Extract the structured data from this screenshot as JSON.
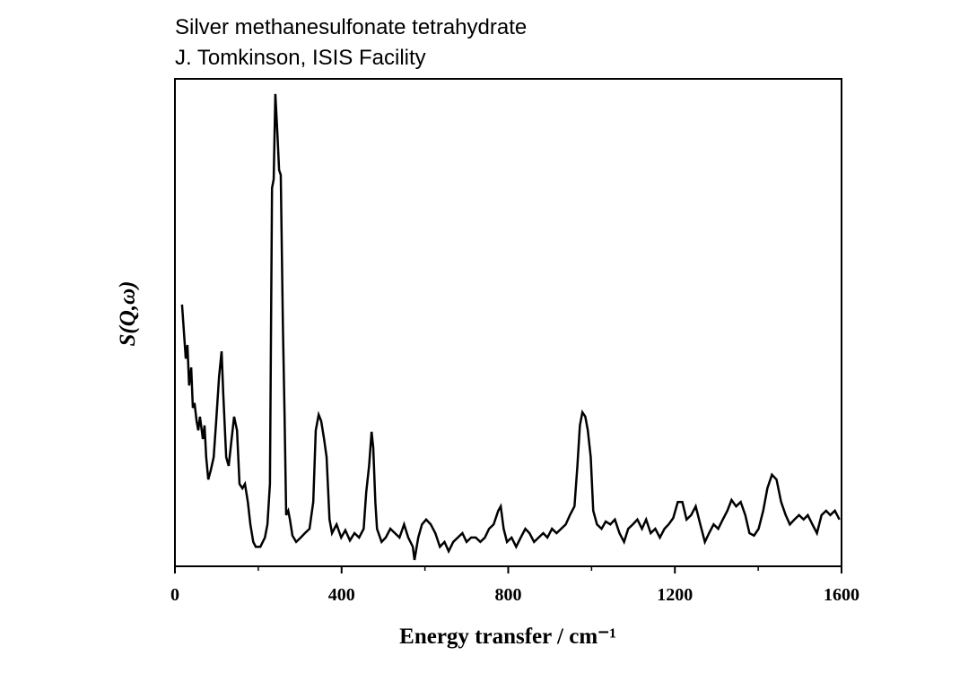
{
  "chart_data": {
    "type": "line",
    "title": "Silver methanesulfonate tetrahydrate",
    "subtitle": "J. Tomkinson, ISIS Facility",
    "x_label": "Energy transfer / cm⁻¹",
    "y_label": "S(Q,ω)",
    "xlim": [
      0,
      1600
    ],
    "xticks": [
      0,
      400,
      800,
      1200,
      1600
    ],
    "xticks_minor": [
      200,
      600,
      1000,
      1400
    ],
    "ylim": [
      0,
      100
    ],
    "series": [
      {
        "color": "#000000",
        "x": [
          17,
          26,
          30,
          34,
          39,
          43,
          47,
          52,
          56,
          60,
          67,
          71,
          75,
          80,
          86,
          93,
          99,
          106,
          112,
          116,
          123,
          129,
          136,
          142,
          149,
          155,
          162,
          168,
          175,
          181,
          188,
          194,
          205,
          216,
          222,
          228,
          233,
          237,
          241,
          246,
          250,
          254,
          259,
          263,
          267,
          272,
          276,
          282,
          291,
          302,
          312,
          323,
          332,
          338,
          345,
          351,
          358,
          364,
          371,
          377,
          388,
          399,
          409,
          420,
          431,
          442,
          453,
          459,
          466,
          472,
          476,
          481,
          485,
          496,
          506,
          517,
          528,
          539,
          550,
          560,
          571,
          575,
          584,
          593,
          603,
          614,
          625,
          636,
          647,
          657,
          668,
          679,
          690,
          700,
          711,
          722,
          733,
          744,
          754,
          765,
          776,
          782,
          789,
          797,
          808,
          819,
          830,
          841,
          851,
          862,
          873,
          884,
          894,
          905,
          916,
          927,
          938,
          948,
          959,
          966,
          972,
          978,
          985,
          991,
          998,
          1004,
          1013,
          1024,
          1034,
          1045,
          1056,
          1067,
          1078,
          1088,
          1099,
          1110,
          1121,
          1131,
          1142,
          1153,
          1164,
          1175,
          1185,
          1196,
          1207,
          1218,
          1228,
          1239,
          1250,
          1261,
          1272,
          1282,
          1293,
          1304,
          1315,
          1326,
          1336,
          1347,
          1358,
          1369,
          1379,
          1390,
          1401,
          1412,
          1422,
          1433,
          1444,
          1455,
          1466,
          1476,
          1487,
          1498,
          1509,
          1519,
          1530,
          1541,
          1552,
          1563,
          1573,
          1584,
          1595
        ],
        "values": [
          53.7,
          42.6,
          45.4,
          37.1,
          40.8,
          32.5,
          33.5,
          29.8,
          27.9,
          30.7,
          26.1,
          28.9,
          22.4,
          17.8,
          19.7,
          22.4,
          29.8,
          39.0,
          44.1,
          35.3,
          22.4,
          20.6,
          26.1,
          30.7,
          27.9,
          16.9,
          16.0,
          16.9,
          13.2,
          8.6,
          5.0,
          4.0,
          4.0,
          5.9,
          8.6,
          16.9,
          77.6,
          79.4,
          96.9,
          88.6,
          81.3,
          80.3,
          50.0,
          31.6,
          10.5,
          11.4,
          9.6,
          6.3,
          5.0,
          5.9,
          6.8,
          7.7,
          13.2,
          27.9,
          31.1,
          29.8,
          26.1,
          22.4,
          9.6,
          6.8,
          8.6,
          5.9,
          7.4,
          5.3,
          6.8,
          5.9,
          7.7,
          15.1,
          20.6,
          27.6,
          24.3,
          13.2,
          7.7,
          5.0,
          5.9,
          7.7,
          6.8,
          5.9,
          8.6,
          5.9,
          4.0,
          1.3,
          5.9,
          8.6,
          9.6,
          8.6,
          6.8,
          4.0,
          5.0,
          3.1,
          5.0,
          5.9,
          6.8,
          5.0,
          5.9,
          5.9,
          5.0,
          5.9,
          7.7,
          8.6,
          11.4,
          12.3,
          7.7,
          5.0,
          5.9,
          4.0,
          5.9,
          7.7,
          6.8,
          5.0,
          5.9,
          6.8,
          5.9,
          7.7,
          6.8,
          7.7,
          8.6,
          10.5,
          12.3,
          20.6,
          28.9,
          31.6,
          30.7,
          27.9,
          22.4,
          11.4,
          8.6,
          7.7,
          9.2,
          8.6,
          9.6,
          6.8,
          5.0,
          7.7,
          8.6,
          9.6,
          7.7,
          9.6,
          6.8,
          7.7,
          5.9,
          7.7,
          8.6,
          9.9,
          13.2,
          13.2,
          9.6,
          10.5,
          12.3,
          8.6,
          5.0,
          6.8,
          8.6,
          7.7,
          9.6,
          11.4,
          13.6,
          12.3,
          13.2,
          10.5,
          6.8,
          6.3,
          7.7,
          11.4,
          16.0,
          18.8,
          17.8,
          13.2,
          10.5,
          8.6,
          9.6,
          10.5,
          9.6,
          10.5,
          8.6,
          6.8,
          10.5,
          11.4,
          10.5,
          11.4,
          9.6
        ]
      }
    ]
  }
}
